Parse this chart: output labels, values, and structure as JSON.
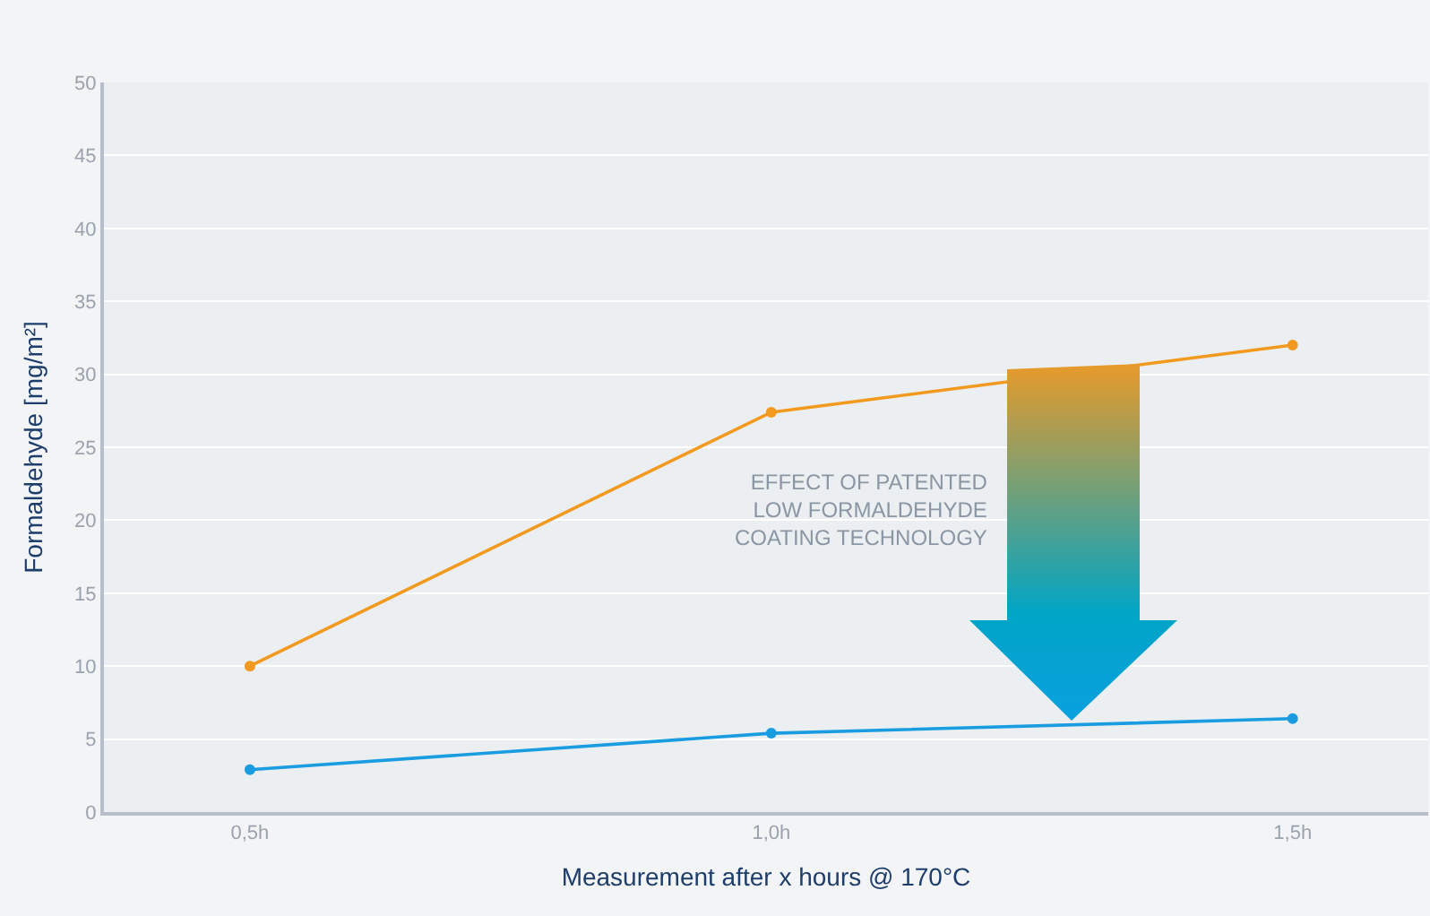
{
  "chart_data": {
    "type": "line",
    "xlabel": "Measurement after x hours @ 170°C",
    "ylabel": "Formaldehyde [mg/m²]",
    "categories": [
      "0,5h",
      "1,0h",
      "1,5h"
    ],
    "series": [
      {
        "color": "#f29a1f",
        "values": [
          10,
          27.4,
          32
        ]
      },
      {
        "color": "#1a9de0",
        "values": [
          2.9,
          5.4,
          6.4
        ]
      }
    ],
    "ylim": [
      0,
      50
    ],
    "yticks": [
      0,
      5,
      10,
      15,
      20,
      25,
      30,
      35,
      40,
      45,
      50
    ],
    "grid": "y",
    "marker": "circle",
    "line_style": "solid",
    "annotations": [
      "EFFECT OF PATENTED\nLOW FORMALDEHYDE\nCOATING TECHNOLOGY"
    ]
  }
}
